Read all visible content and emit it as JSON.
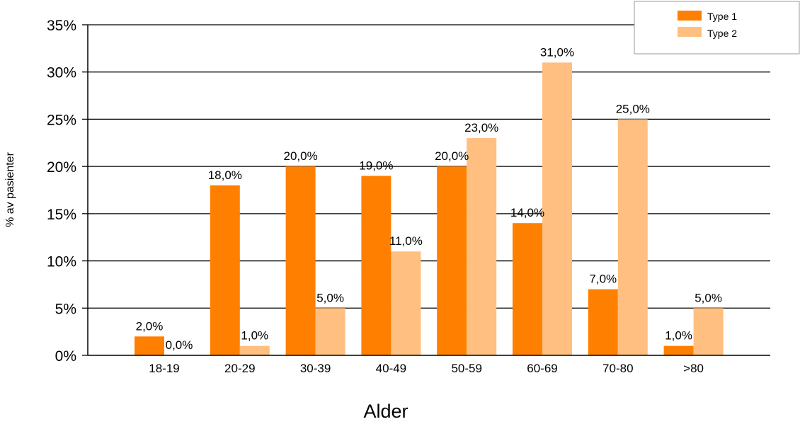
{
  "chart_data": {
    "type": "bar",
    "title": "",
    "xlabel": "Alder",
    "ylabel": "% av pasienter",
    "categories": [
      "18-19",
      "20-29",
      "30-39",
      "40-49",
      "50-59",
      "60-69",
      "70-80",
      ">80"
    ],
    "series": [
      {
        "name": "Type 1",
        "color": "#FF8000",
        "values": [
          2.0,
          18.0,
          20.0,
          19.0,
          20.0,
          14.0,
          7.0,
          1.0
        ],
        "labels": [
          "2,0%",
          "18,0%",
          "20,0%",
          "19,0%",
          "20,0%",
          "14,0%",
          "7,0%",
          "1,0%"
        ]
      },
      {
        "name": "Type 2",
        "color": "#FFBF80",
        "values": [
          0.0,
          1.0,
          5.0,
          11.0,
          23.0,
          31.0,
          25.0,
          5.0
        ],
        "labels": [
          "0,0%",
          "1,0%",
          "5,0%",
          "11,0%",
          "23,0%",
          "31,0%",
          "25,0%",
          "5,0%"
        ]
      }
    ],
    "ylim": [
      0,
      35
    ],
    "yticks": [
      0,
      5,
      10,
      15,
      20,
      25,
      30,
      35
    ],
    "ytick_labels": [
      "0%",
      "5%",
      "10%",
      "15%",
      "20%",
      "25%",
      "30%",
      "35%"
    ],
    "grid": true,
    "legend_position": "top-right"
  }
}
